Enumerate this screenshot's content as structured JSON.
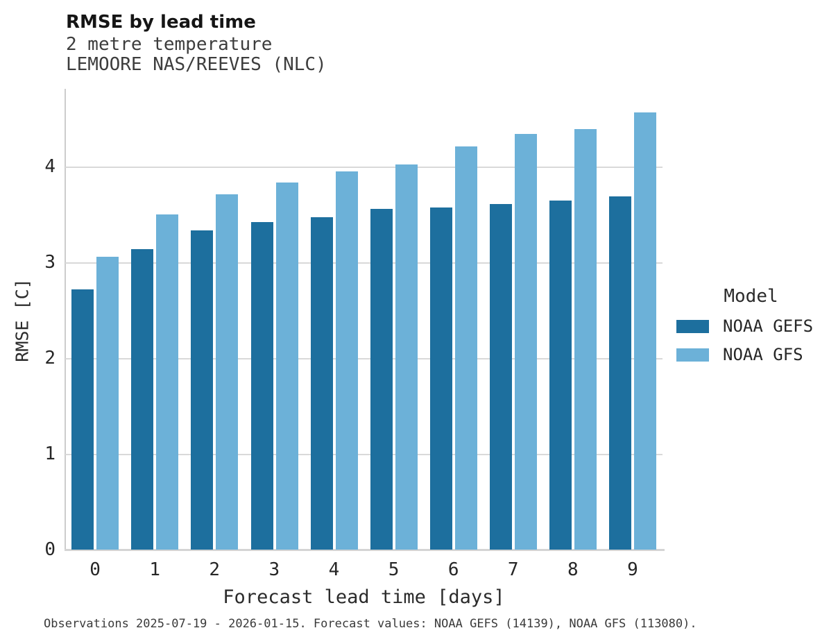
{
  "header": {
    "title": "RMSE by lead time",
    "subtitle_line1": "2 metre temperature",
    "subtitle_line2": "LEMOORE NAS/REEVES (NLC)"
  },
  "chart_data": {
    "type": "bar",
    "grouped": true,
    "title": "RMSE by lead time",
    "subtitle": [
      "2 metre temperature",
      "LEMOORE NAS/REEVES (NLC)"
    ],
    "categories": [
      "0",
      "1",
      "2",
      "3",
      "4",
      "5",
      "6",
      "7",
      "8",
      "9"
    ],
    "series": [
      {
        "name": "NOAA GEFS",
        "color": "#1d6f9e",
        "values": [
          2.72,
          3.14,
          3.33,
          3.42,
          3.47,
          3.56,
          3.57,
          3.61,
          3.64,
          3.69
        ]
      },
      {
        "name": "NOAA GFS",
        "color": "#6cb1d8",
        "values": [
          3.06,
          3.5,
          3.71,
          3.83,
          3.95,
          4.02,
          4.21,
          4.34,
          4.39,
          4.56
        ]
      }
    ],
    "xlabel": "Forecast lead time [days]",
    "ylabel": "RMSE [C]",
    "ylim": [
      0,
      4.81
    ],
    "yticks": [
      0,
      1,
      2,
      3,
      4
    ],
    "grid": "horizontal",
    "gridline_color": "#d9d9d9",
    "legend_title": "Model",
    "legend_position": "right"
  },
  "legend": {
    "title": "Model",
    "entries": [
      {
        "label": "NOAA GEFS",
        "color": "#1d6f9e"
      },
      {
        "label": "NOAA GFS",
        "color": "#6cb1d8"
      }
    ]
  },
  "footer": {
    "text": "Observations 2025-07-19 - 2026-01-15. Forecast values: NOAA GEFS (14139), NOAA GFS (113080)."
  }
}
